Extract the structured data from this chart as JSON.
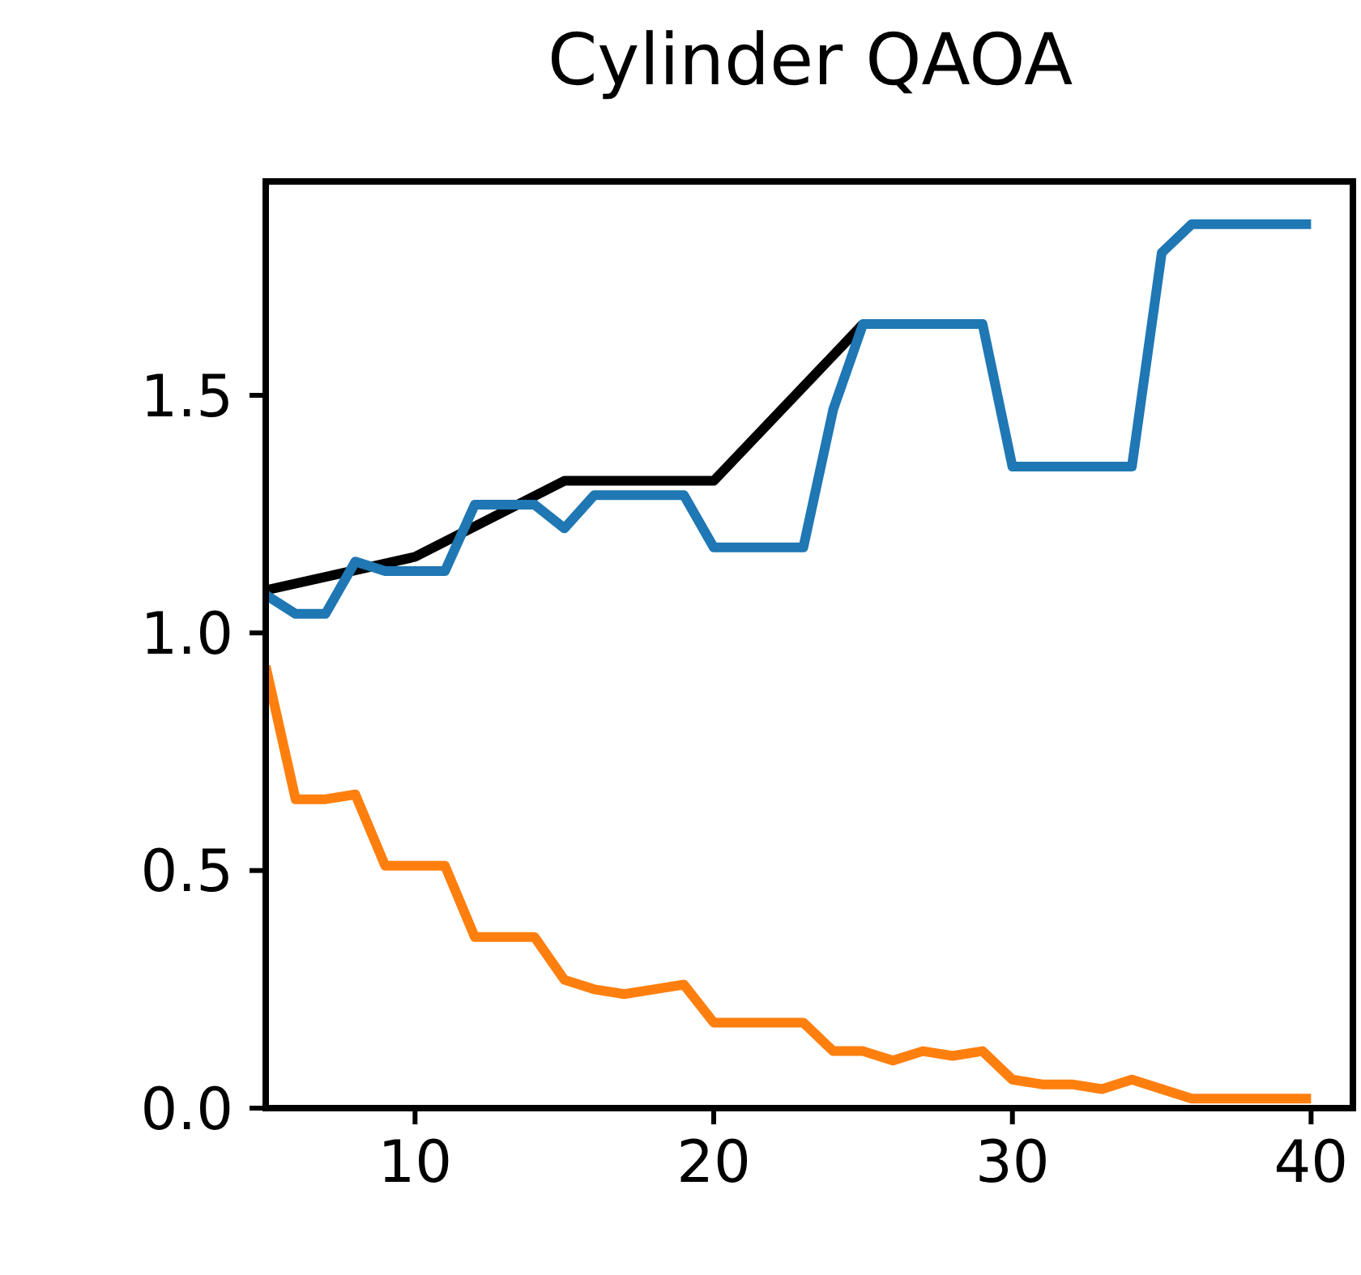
{
  "chart_data": {
    "type": "line",
    "title": "Cylinder QAOA",
    "x": [
      5,
      6,
      7,
      8,
      9,
      10,
      11,
      12,
      13,
      14,
      15,
      16,
      17,
      18,
      19,
      20,
      21,
      22,
      23,
      24,
      25,
      26,
      27,
      28,
      29,
      30,
      31,
      32,
      33,
      34,
      35,
      36,
      37,
      38,
      39,
      40
    ],
    "series": [
      {
        "color": "#000000",
        "x": [
          5,
          10,
          15,
          20,
          25
        ],
        "values": [
          1.09,
          1.16,
          1.32,
          1.32,
          1.65
        ]
      },
      {
        "color": "#1f77b4",
        "values": [
          1.08,
          1.04,
          1.04,
          1.15,
          1.13,
          1.13,
          1.13,
          1.27,
          1.27,
          1.27,
          1.22,
          1.29,
          1.29,
          1.29,
          1.29,
          1.18,
          1.18,
          1.18,
          1.18,
          1.47,
          1.65,
          1.65,
          1.65,
          1.65,
          1.65,
          1.35,
          1.35,
          1.35,
          1.35,
          1.35,
          1.8,
          1.86,
          1.86,
          1.86,
          1.86,
          1.86
        ]
      },
      {
        "color": "#ff7f0e",
        "values": [
          0.93,
          0.65,
          0.65,
          0.66,
          0.51,
          0.51,
          0.51,
          0.36,
          0.36,
          0.36,
          0.27,
          0.25,
          0.24,
          0.25,
          0.26,
          0.18,
          0.18,
          0.18,
          0.18,
          0.12,
          0.12,
          0.1,
          0.12,
          0.11,
          0.12,
          0.06,
          0.05,
          0.05,
          0.04,
          0.06,
          0.04,
          0.02,
          0.02,
          0.02,
          0.02,
          0.02
        ]
      }
    ],
    "xlim": [
      5,
      41.4
    ],
    "xticks": [
      10,
      20,
      30,
      40
    ],
    "ylim": [
      0,
      1.95
    ],
    "yticks": [
      {
        "value": 0,
        "label": "0.0"
      },
      {
        "value": 0.5,
        "label": "0.5"
      },
      {
        "value": 1,
        "label": "1.0"
      },
      {
        "value": 1.5,
        "label": "1.5"
      }
    ],
    "grid": false,
    "marker": "none",
    "line_style": "solid"
  }
}
